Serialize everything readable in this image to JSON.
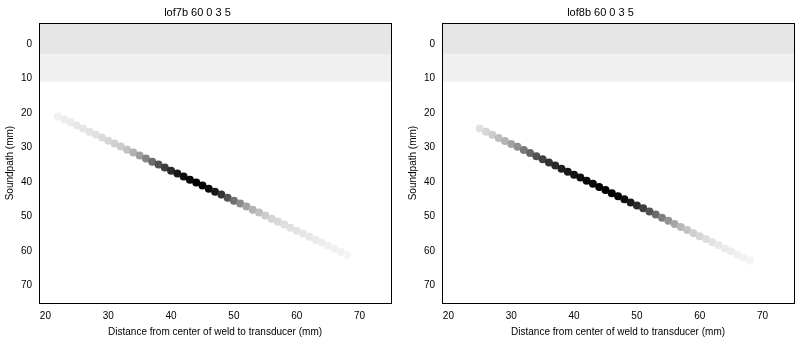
{
  "chart_data": [
    {
      "type": "heatmap",
      "title": "lof7b 60 0 3 5",
      "x_label": "Distance from center of weld to transducer (mm)",
      "y_label": "Soundpath (mm)",
      "xlim": [
        19,
        75
      ],
      "ylim": [
        -6,
        75
      ],
      "xticks": [
        20,
        30,
        40,
        50,
        60,
        70
      ],
      "yticks": [
        0,
        10,
        20,
        30,
        40,
        50,
        60,
        70
      ],
      "grid": false,
      "cells": [
        {
          "x": [
            19,
            75
          ],
          "y": [
            -6,
            3
          ],
          "value": 0.1
        },
        {
          "x": [
            19,
            75
          ],
          "y": [
            3,
            11
          ],
          "value": 0.06
        }
      ],
      "streak": {
        "x": [
          22,
          23,
          24,
          25,
          26,
          27,
          28,
          29,
          30,
          31,
          32,
          33,
          34,
          35,
          36,
          37,
          38,
          39,
          40,
          41,
          42,
          43,
          44,
          45,
          46,
          47,
          48,
          49,
          50,
          51,
          52,
          53,
          54,
          55,
          56,
          57,
          58,
          59,
          60,
          61,
          62,
          63,
          64,
          65,
          66,
          67,
          68
        ],
        "y": [
          21.0,
          21.9,
          22.7,
          23.6,
          24.5,
          25.4,
          26.2,
          27.1,
          28.0,
          28.8,
          29.7,
          30.6,
          31.4,
          32.3,
          33.2,
          34.1,
          34.9,
          35.8,
          36.7,
          37.5,
          38.4,
          39.3,
          40.1,
          41.0,
          41.9,
          42.8,
          43.6,
          44.5,
          45.4,
          46.2,
          47.1,
          48.0,
          48.8,
          49.7,
          50.6,
          51.5,
          52.3,
          53.2,
          54.1,
          54.9,
          55.8,
          56.7,
          57.5,
          58.4,
          59.3,
          60.2,
          61.0
        ],
        "intensity": [
          0.06,
          0.07,
          0.08,
          0.09,
          0.1,
          0.11,
          0.12,
          0.14,
          0.16,
          0.18,
          0.2,
          0.24,
          0.3,
          0.38,
          0.48,
          0.58,
          0.68,
          0.76,
          0.84,
          0.9,
          0.95,
          0.98,
          1.0,
          1.0,
          0.96,
          0.9,
          0.8,
          0.68,
          0.56,
          0.45,
          0.36,
          0.3,
          0.25,
          0.2,
          0.17,
          0.15,
          0.13,
          0.12,
          0.11,
          0.1,
          0.09,
          0.08,
          0.07,
          0.06,
          0.05,
          0.05,
          0.04
        ]
      }
    },
    {
      "type": "heatmap",
      "title": "lof8b 60 0 3 5",
      "x_label": "Distance from center of weld to transducer (mm)",
      "y_label": "Soundpath (mm)",
      "xlim": [
        19,
        75
      ],
      "ylim": [
        -6,
        75
      ],
      "xticks": [
        20,
        30,
        40,
        50,
        60,
        70
      ],
      "yticks": [
        0,
        10,
        20,
        30,
        40,
        50,
        60,
        70
      ],
      "grid": false,
      "cells": [
        {
          "x": [
            19,
            75
          ],
          "y": [
            -6,
            3
          ],
          "value": 0.1
        },
        {
          "x": [
            19,
            75
          ],
          "y": [
            3,
            11
          ],
          "value": 0.06
        }
      ],
      "streak": {
        "x": [
          25,
          26,
          27,
          28,
          29,
          30,
          31,
          32,
          33,
          34,
          35,
          36,
          37,
          38,
          39,
          40,
          41,
          42,
          43,
          44,
          45,
          46,
          47,
          48,
          49,
          50,
          51,
          52,
          53,
          54,
          55,
          56,
          57,
          58,
          59,
          60,
          61,
          62,
          63,
          64,
          65,
          66,
          67,
          68
        ],
        "y": [
          24.5,
          25.4,
          26.3,
          27.2,
          28.1,
          29.0,
          29.8,
          30.7,
          31.6,
          32.5,
          33.4,
          34.3,
          35.2,
          36.1,
          37.0,
          37.9,
          38.7,
          39.6,
          40.5,
          41.4,
          42.3,
          43.2,
          44.1,
          45.0,
          45.9,
          46.8,
          47.6,
          48.5,
          49.4,
          50.3,
          51.2,
          52.1,
          53.0,
          53.9,
          54.8,
          55.7,
          56.5,
          57.4,
          58.3,
          59.2,
          60.1,
          61.0,
          61.9,
          62.8
        ],
        "intensity": [
          0.12,
          0.16,
          0.2,
          0.25,
          0.3,
          0.36,
          0.44,
          0.52,
          0.6,
          0.68,
          0.75,
          0.8,
          0.84,
          0.88,
          0.9,
          0.92,
          0.94,
          0.96,
          0.98,
          1.0,
          1.0,
          1.0,
          0.98,
          0.95,
          0.9,
          0.84,
          0.76,
          0.68,
          0.58,
          0.5,
          0.42,
          0.35,
          0.28,
          0.23,
          0.19,
          0.16,
          0.13,
          0.11,
          0.09,
          0.08,
          0.07,
          0.06,
          0.05,
          0.04
        ]
      }
    }
  ]
}
